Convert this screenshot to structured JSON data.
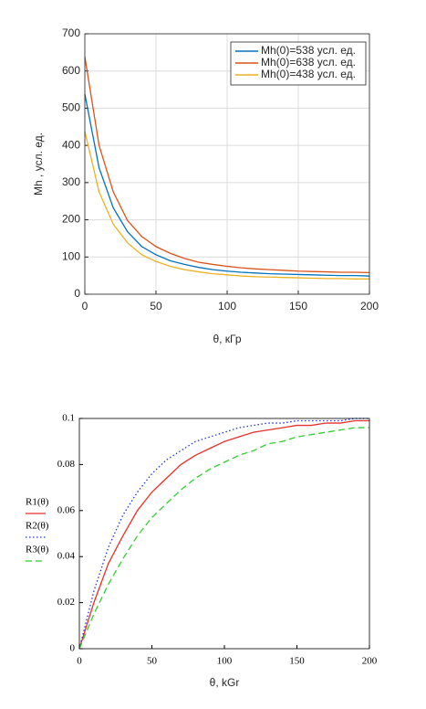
{
  "chart_data": [
    {
      "type": "line",
      "xlabel": "θ, кГр",
      "ylabel": "Mh , усл. ед.",
      "x": [
        0,
        10,
        20,
        30,
        40,
        50,
        60,
        70,
        80,
        90,
        100,
        110,
        120,
        130,
        140,
        150,
        160,
        170,
        180,
        190,
        200
      ],
      "series": [
        {
          "name": "Mh(0)=538 усл. ед.",
          "color": "#0072bd",
          "linestyle": "solid",
          "values": [
            538,
            340,
            232,
            168,
            128,
            106,
            90,
            80,
            72,
            66,
            62,
            59,
            57,
            55,
            54,
            53,
            52,
            51,
            50,
            50,
            49
          ]
        },
        {
          "name": "Mh(0)=638 усл. ед.",
          "color": "#d95319",
          "linestyle": "solid",
          "values": [
            638,
            400,
            275,
            198,
            155,
            128,
            110,
            96,
            86,
            80,
            75,
            71,
            68,
            66,
            64,
            62,
            61,
            60,
            59,
            59,
            58
          ]
        },
        {
          "name": "Mh(0)=438 усл. ед.",
          "color": "#edb120",
          "linestyle": "solid",
          "values": [
            438,
            275,
            188,
            138,
            106,
            88,
            75,
            66,
            60,
            55,
            52,
            49,
            47,
            46,
            45,
            44,
            43,
            42,
            42,
            41,
            41
          ]
        }
      ],
      "xlim": [
        0,
        200
      ],
      "xticks": [
        0,
        50,
        100,
        150,
        200
      ],
      "ylim": [
        0,
        700
      ],
      "yticks": [
        0,
        100,
        200,
        300,
        400,
        500,
        600,
        700
      ],
      "grid": true,
      "legend": "upper right"
    },
    {
      "type": "line",
      "xlabel": "θ, kGr",
      "x": [
        0,
        10,
        20,
        30,
        40,
        50,
        60,
        70,
        80,
        90,
        100,
        110,
        120,
        130,
        140,
        150,
        160,
        170,
        180,
        190,
        200
      ],
      "series": [
        {
          "name": "R1(θ)",
          "color": "#e8302a",
          "linestyle": "solid",
          "values": [
            0,
            0.02,
            0.037,
            0.049,
            0.06,
            0.068,
            0.074,
            0.08,
            0.084,
            0.087,
            0.09,
            0.092,
            0.094,
            0.095,
            0.096,
            0.097,
            0.097,
            0.098,
            0.098,
            0.099,
            0.099
          ]
        },
        {
          "name": "R2(θ)",
          "color": "#2233cc",
          "linestyle": "dotted",
          "values": [
            0,
            0.025,
            0.044,
            0.058,
            0.068,
            0.076,
            0.082,
            0.086,
            0.09,
            0.092,
            0.094,
            0.096,
            0.097,
            0.098,
            0.098,
            0.099,
            0.099,
            0.099,
            0.099,
            0.1,
            0.1
          ]
        },
        {
          "name": "R3(θ)",
          "color": "#33cc33",
          "linestyle": "dashed",
          "values": [
            0,
            0.015,
            0.028,
            0.039,
            0.049,
            0.057,
            0.063,
            0.069,
            0.074,
            0.078,
            0.081,
            0.084,
            0.086,
            0.089,
            0.09,
            0.092,
            0.093,
            0.094,
            0.095,
            0.096,
            0.096
          ]
        }
      ],
      "xlim": [
        0,
        200
      ],
      "xticks": [
        0,
        50,
        100,
        150,
        200
      ],
      "ylim": [
        0,
        0.1
      ],
      "yticks": [
        0,
        0.02,
        0.04,
        0.06,
        0.08,
        0.1
      ],
      "grid": false,
      "legend": "left"
    }
  ]
}
